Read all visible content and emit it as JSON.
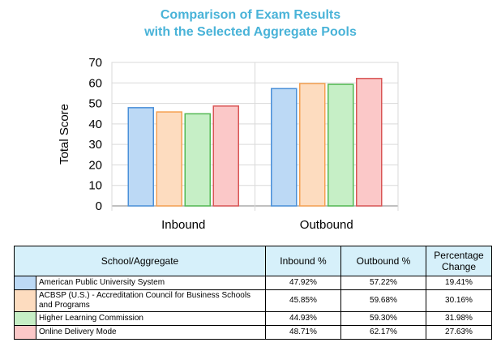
{
  "chart_data": {
    "type": "bar",
    "title_line1": "Comparison of Exam Results",
    "title_line2": "with the Selected Aggregate Pools",
    "ylabel": "Total Score",
    "xlabel": "",
    "ylim": [
      0,
      70
    ],
    "yticks": [
      0,
      10,
      20,
      30,
      40,
      50,
      60,
      70
    ],
    "grid": true,
    "categories": [
      "Inbound",
      "Outbound"
    ],
    "series": [
      {
        "name": "American Public University System",
        "values": [
          47.92,
          57.22
        ],
        "fill": "#bcd9f5",
        "stroke": "#4a90d9"
      },
      {
        "name": "ACBSP (U.S.) - Accreditation Council for Business Schools and Programs",
        "values": [
          45.85,
          59.68
        ],
        "fill": "#fddcbf",
        "stroke": "#f5a050"
      },
      {
        "name": "Higher Learning Commission",
        "values": [
          44.93,
          59.3
        ],
        "fill": "#c6efc6",
        "stroke": "#52b852"
      },
      {
        "name": "Online Delivery Mode",
        "values": [
          48.71,
          62.17
        ],
        "fill": "#fbc8c8",
        "stroke": "#d95555"
      }
    ]
  },
  "table": {
    "headers": {
      "school": "School/Aggregate",
      "inbound": "Inbound %",
      "outbound": "Outbound %",
      "change": "Percentage Change"
    },
    "rows": [
      {
        "name": "American Public University System",
        "inbound": "47.92%",
        "outbound": "57.22%",
        "change": "19.41%",
        "color": "#bcd9f5"
      },
      {
        "name": "ACBSP (U.S.) - Accreditation Council for Business Schools and Programs",
        "inbound": "45.85%",
        "outbound": "59.68%",
        "change": "30.16%",
        "color": "#fddcbf"
      },
      {
        "name": "Higher Learning Commission",
        "inbound": "44.93%",
        "outbound": "59.30%",
        "change": "31.98%",
        "color": "#c6efc6"
      },
      {
        "name": "Online Delivery Mode",
        "inbound": "48.71%",
        "outbound": "62.17%",
        "change": "27.63%",
        "color": "#fbc8c8"
      }
    ]
  }
}
